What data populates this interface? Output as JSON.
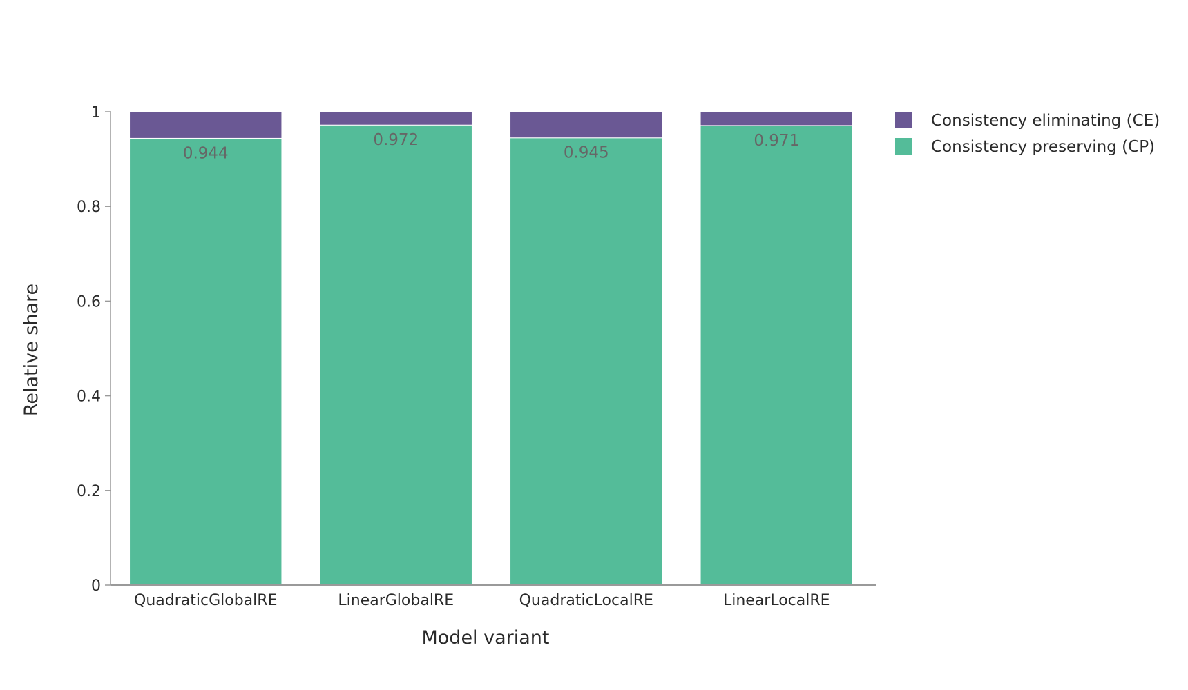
{
  "chart_data": {
    "type": "bar",
    "stacked": true,
    "title": "",
    "xlabel": "Model variant",
    "ylabel": "Relative share",
    "ylim": [
      0,
      1
    ],
    "yticks": [
      "0",
      "0.2",
      "0.4",
      "0.6",
      "0.8",
      "1"
    ],
    "ytick_values": [
      0,
      0.2,
      0.4,
      0.6,
      0.8,
      1
    ],
    "categories": [
      "QuadraticGlobalRE",
      "LinearGlobalRE",
      "QuadraticLocalRE",
      "LinearLocalRE"
    ],
    "series": [
      {
        "name": "Consistency preserving (CP)",
        "values": [
          0.944,
          0.972,
          0.945,
          0.971
        ],
        "color": "#54bc99",
        "labels": [
          "0.944",
          "0.972",
          "0.945",
          "0.971"
        ]
      },
      {
        "name": "Consistency eliminating (CE)",
        "values": [
          0.056,
          0.028,
          0.055,
          0.029
        ],
        "color": "#6a5894"
      }
    ],
    "legend": {
      "position": "top-right",
      "items": [
        "Consistency eliminating (CE)",
        "Consistency preserving (CP)"
      ],
      "colors": [
        "#6a5894",
        "#54bc99"
      ]
    },
    "grid": false
  }
}
